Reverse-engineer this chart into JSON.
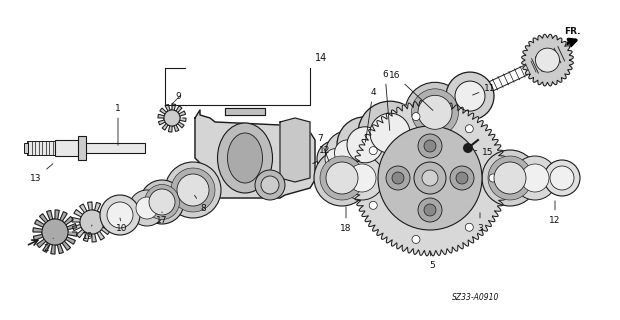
{
  "background_color": "#ffffff",
  "diagram_code": "SZ33-A0910",
  "fr_label": "FR.",
  "line_color": "#1a1a1a",
  "text_color": "#111111",
  "fill_light": "#e8e8e8",
  "fill_mid": "#cccccc",
  "fill_dark": "#aaaaaa"
}
